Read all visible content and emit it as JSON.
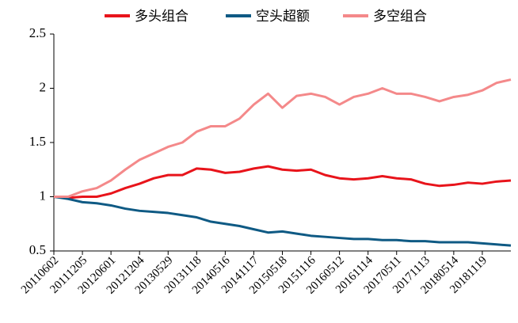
{
  "chart_data": {
    "type": "line",
    "categories": [
      "20110602",
      null,
      "20111205",
      null,
      "20120601",
      null,
      "20121204",
      null,
      "20130529",
      null,
      "20131118",
      null,
      "20140516",
      null,
      "20141117",
      null,
      "20150518",
      null,
      "20151116",
      null,
      "20160512",
      null,
      "20161114",
      null,
      "20170511",
      null,
      "20171113",
      null,
      "20180514",
      null,
      "20181119",
      null,
      null
    ],
    "series": [
      {
        "name": "多头组合",
        "color": "#e8141b",
        "values": [
          1.0,
          0.99,
          1.0,
          1.0,
          1.03,
          1.08,
          1.12,
          1.17,
          1.2,
          1.2,
          1.26,
          1.25,
          1.22,
          1.23,
          1.26,
          1.28,
          1.25,
          1.24,
          1.25,
          1.2,
          1.17,
          1.16,
          1.17,
          1.19,
          1.17,
          1.16,
          1.12,
          1.1,
          1.11,
          1.13,
          1.12,
          1.14,
          1.15
        ]
      },
      {
        "name": "空头超额",
        "color": "#0f5a84",
        "values": [
          1.0,
          0.98,
          0.95,
          0.94,
          0.92,
          0.89,
          0.87,
          0.86,
          0.85,
          0.83,
          0.81,
          0.77,
          0.75,
          0.73,
          0.7,
          0.67,
          0.68,
          0.66,
          0.64,
          0.63,
          0.62,
          0.61,
          0.61,
          0.6,
          0.6,
          0.59,
          0.59,
          0.58,
          0.58,
          0.58,
          0.57,
          0.56,
          0.55
        ]
      },
      {
        "name": "多空组合",
        "color": "#f4898a",
        "values": [
          1.0,
          1.0,
          1.05,
          1.08,
          1.15,
          1.25,
          1.34,
          1.4,
          1.46,
          1.5,
          1.6,
          1.65,
          1.65,
          1.72,
          1.85,
          1.95,
          1.82,
          1.93,
          1.95,
          1.92,
          1.85,
          1.92,
          1.95,
          2.0,
          1.95,
          1.95,
          1.92,
          1.88,
          1.92,
          1.94,
          1.98,
          2.05,
          2.08
        ]
      }
    ],
    "ylim": [
      0.5,
      2.5
    ],
    "yticks": [
      0.5,
      1,
      1.5,
      2,
      2.5
    ]
  }
}
